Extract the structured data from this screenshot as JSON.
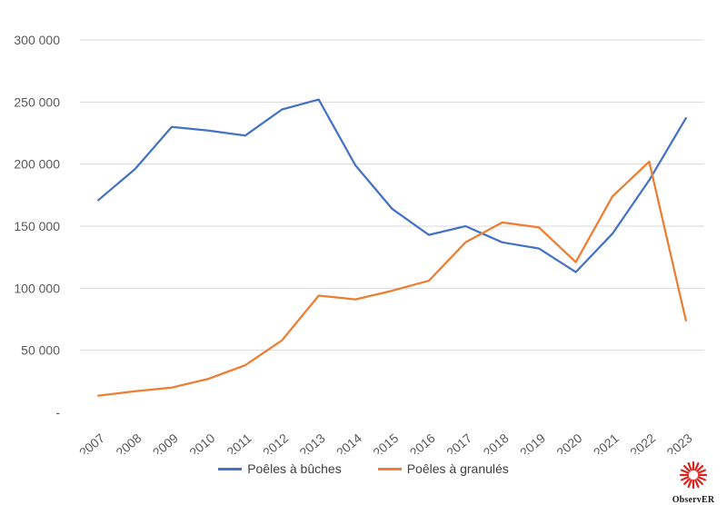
{
  "chart_data": {
    "type": "line",
    "title": "",
    "xlabel": "",
    "ylabel": "",
    "categories": [
      "2007",
      "2008",
      "2009",
      "2010",
      "2011",
      "2012",
      "2013",
      "2014",
      "2015",
      "2016",
      "2017",
      "2018",
      "2019",
      "2020",
      "2021",
      "2022",
      "2023"
    ],
    "ylim": [
      0,
      300000
    ],
    "y_ticks": [
      {
        "value": 0,
        "label": "-"
      },
      {
        "value": 50000,
        "label": "50 000"
      },
      {
        "value": 100000,
        "label": "100 000"
      },
      {
        "value": 150000,
        "label": "150 000"
      },
      {
        "value": 200000,
        "label": "200 000"
      },
      {
        "value": 250000,
        "label": "250 000"
      },
      {
        "value": 300000,
        "label": "300 000"
      }
    ],
    "grid": true,
    "legend_position": "bottom",
    "series": [
      {
        "name": "Poêles à bûches",
        "color": "#4472C4",
        "values": [
          171000,
          196000,
          230000,
          227000,
          223000,
          244000,
          252000,
          199000,
          164000,
          143000,
          150000,
          137000,
          132000,
          113000,
          144000,
          187000,
          237000
        ]
      },
      {
        "name": "Poêles à granulés",
        "color": "#ED7D31",
        "values": [
          13500,
          17000,
          20000,
          27000,
          38000,
          58000,
          94000,
          91000,
          98000,
          106000,
          137000,
          153000,
          149000,
          121000,
          174000,
          202000,
          74000
        ]
      }
    ]
  },
  "logo": {
    "text": "ObservER",
    "color": "#e0201b"
  }
}
